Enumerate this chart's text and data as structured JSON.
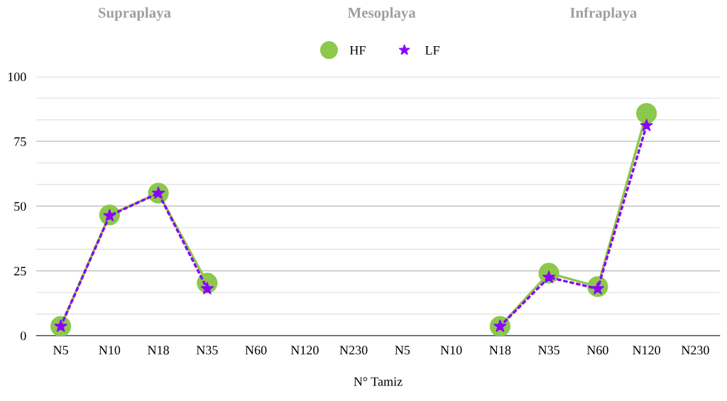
{
  "chart_data": {
    "type": "line",
    "xlabel": "N° Tamiz",
    "annotations": [
      "Supraplaya",
      "Mesoplaya",
      "Infraplaya"
    ],
    "categories": [
      "N5",
      "N10",
      "N18",
      "N35",
      "N60",
      "N120",
      "N230",
      "N5",
      "N10",
      "N18",
      "N35",
      "N60",
      "N120",
      "N230"
    ],
    "series": [
      {
        "name": "HF",
        "color": "#8cc84b",
        "marker": "circle",
        "line_style": "solid",
        "values": [
          3.6,
          46.6,
          55,
          20.3,
          null,
          null,
          null,
          null,
          null,
          3.6,
          24.1,
          18.9,
          85.8,
          null
        ]
      },
      {
        "name": "LF",
        "color": "#8b00ff",
        "marker": "star",
        "line_style": "dotted",
        "values": [
          3.6,
          46.3,
          55,
          18.1,
          null,
          null,
          null,
          null,
          null,
          3.6,
          22.5,
          18.1,
          81.1,
          null
        ]
      }
    ],
    "ylim": [
      0,
      100
    ],
    "yticks": [
      0,
      25,
      50,
      75,
      100
    ],
    "grid": "y",
    "legend": "top"
  }
}
